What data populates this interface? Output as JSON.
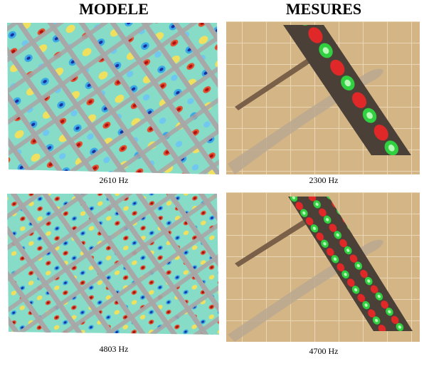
{
  "header": {
    "left": "MODELE",
    "right": "MESURES"
  },
  "panels": [
    {
      "caption": "2610 Hz"
    },
    {
      "caption": "2300 Hz"
    },
    {
      "caption": "4803 Hz"
    },
    {
      "caption": "4700 Hz"
    }
  ]
}
